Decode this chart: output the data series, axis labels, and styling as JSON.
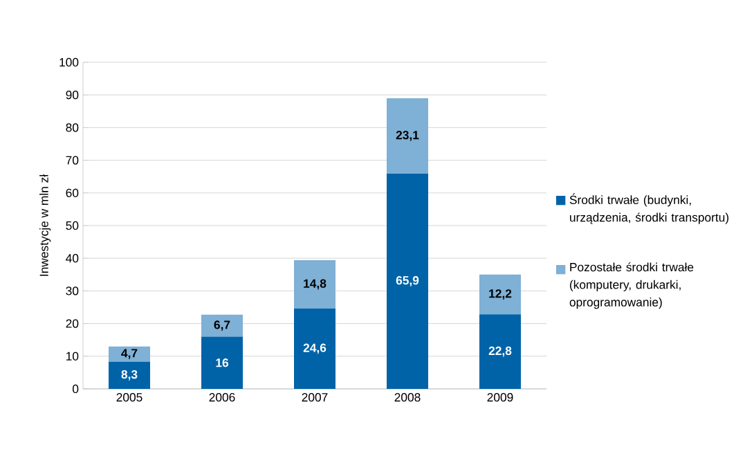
{
  "chart_data": {
    "type": "bar",
    "stacked": true,
    "ylabel": "Inwestycje w mln zł",
    "categories": [
      "2005",
      "2006",
      "2007",
      "2008",
      "2009"
    ],
    "series": [
      {
        "name": "Środki trwałe (budynki, urządzenia, środki transportu)",
        "color": "#0063a8",
        "values": [
          8.3,
          16,
          24.6,
          65.9,
          22.8
        ],
        "value_labels": [
          "8,3",
          "16",
          "24,6",
          "65,9",
          "22,8"
        ]
      },
      {
        "name": "Pozostałe środki trwałe (komputery, drukarki, oprogramowanie)",
        "color": "#7fb0d6",
        "values": [
          4.7,
          6.7,
          14.8,
          23.1,
          12.2
        ],
        "value_labels": [
          "4,7",
          "6,7",
          "14,8",
          "23,1",
          "12,2"
        ]
      }
    ],
    "ylim": [
      0,
      100
    ],
    "yticks": [
      0,
      10,
      20,
      30,
      40,
      50,
      60,
      70,
      80,
      90,
      100
    ],
    "grid": "y",
    "legend": "right"
  }
}
